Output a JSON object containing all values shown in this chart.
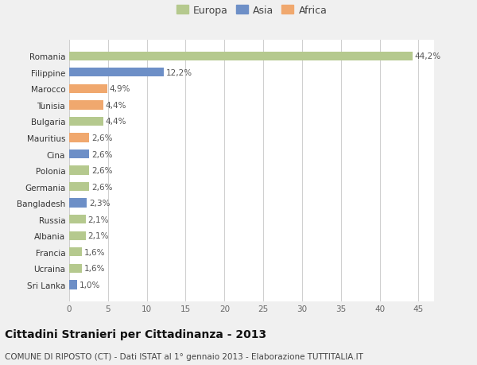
{
  "categories": [
    "Romania",
    "Filippine",
    "Marocco",
    "Tunisia",
    "Bulgaria",
    "Mauritius",
    "Cina",
    "Polonia",
    "Germania",
    "Bangladesh",
    "Russia",
    "Albania",
    "Francia",
    "Ucraina",
    "Sri Lanka"
  ],
  "values": [
    44.2,
    12.2,
    4.9,
    4.4,
    4.4,
    2.6,
    2.6,
    2.6,
    2.6,
    2.3,
    2.1,
    2.1,
    1.6,
    1.6,
    1.0
  ],
  "labels": [
    "44,2%",
    "12,2%",
    "4,9%",
    "4,4%",
    "4,4%",
    "2,6%",
    "2,6%",
    "2,6%",
    "2,6%",
    "2,3%",
    "2,1%",
    "2,1%",
    "1,6%",
    "1,6%",
    "1,0%"
  ],
  "colors": [
    "#b5c98e",
    "#6d8fc7",
    "#f0a86e",
    "#f0a86e",
    "#b5c98e",
    "#f0a86e",
    "#6d8fc7",
    "#b5c98e",
    "#b5c98e",
    "#6d8fc7",
    "#b5c98e",
    "#b5c98e",
    "#b5c98e",
    "#b5c98e",
    "#6d8fc7"
  ],
  "continents": [
    "Europa",
    "Asia",
    "Africa"
  ],
  "legend_colors": [
    "#b5c98e",
    "#6d8fc7",
    "#f0a86e"
  ],
  "title": "Cittadini Stranieri per Cittadinanza - 2013",
  "subtitle": "COMUNE DI RIPOSTO (CT) - Dati ISTAT al 1° gennaio 2013 - Elaborazione TUTTITALIA.IT",
  "xlim": [
    0,
    47
  ],
  "xticks": [
    0,
    5,
    10,
    15,
    20,
    25,
    30,
    35,
    40,
    45
  ],
  "bg_color": "#f0f0f0",
  "bar_bg_color": "#ffffff",
  "grid_color": "#d0d0d0",
  "label_fontsize": 7.5,
  "tick_fontsize": 7.5,
  "title_fontsize": 10,
  "subtitle_fontsize": 7.5
}
